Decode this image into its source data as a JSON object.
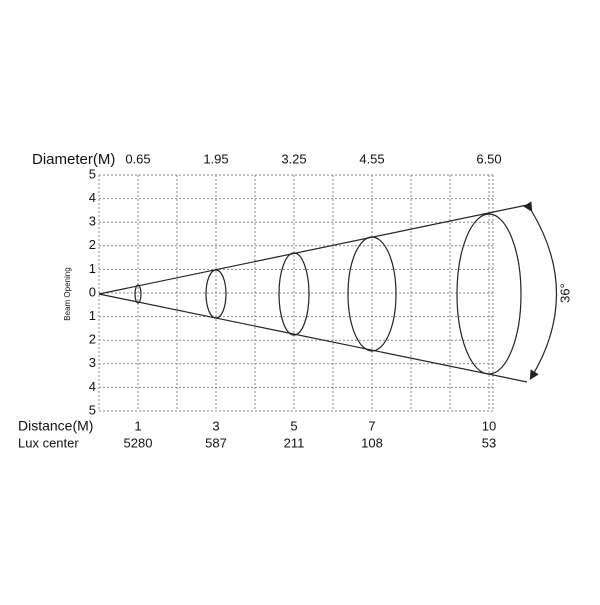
{
  "header": {
    "title": "Diameter(M)",
    "diameters": [
      "0.65",
      "1.95",
      "3.25",
      "4.55",
      "6.50"
    ]
  },
  "axis": {
    "label": "Beam Opening",
    "ticks": [
      "5",
      "4",
      "3",
      "2",
      "1",
      "0",
      "1",
      "2",
      "3",
      "4",
      "5"
    ]
  },
  "distance": {
    "label": "Distance(M)",
    "values": [
      "1",
      "3",
      "5",
      "7",
      "10"
    ]
  },
  "lux": {
    "label": "Lux center",
    "values": [
      "5280",
      "587",
      "211",
      "108",
      "53"
    ]
  },
  "angle": "36°"
}
